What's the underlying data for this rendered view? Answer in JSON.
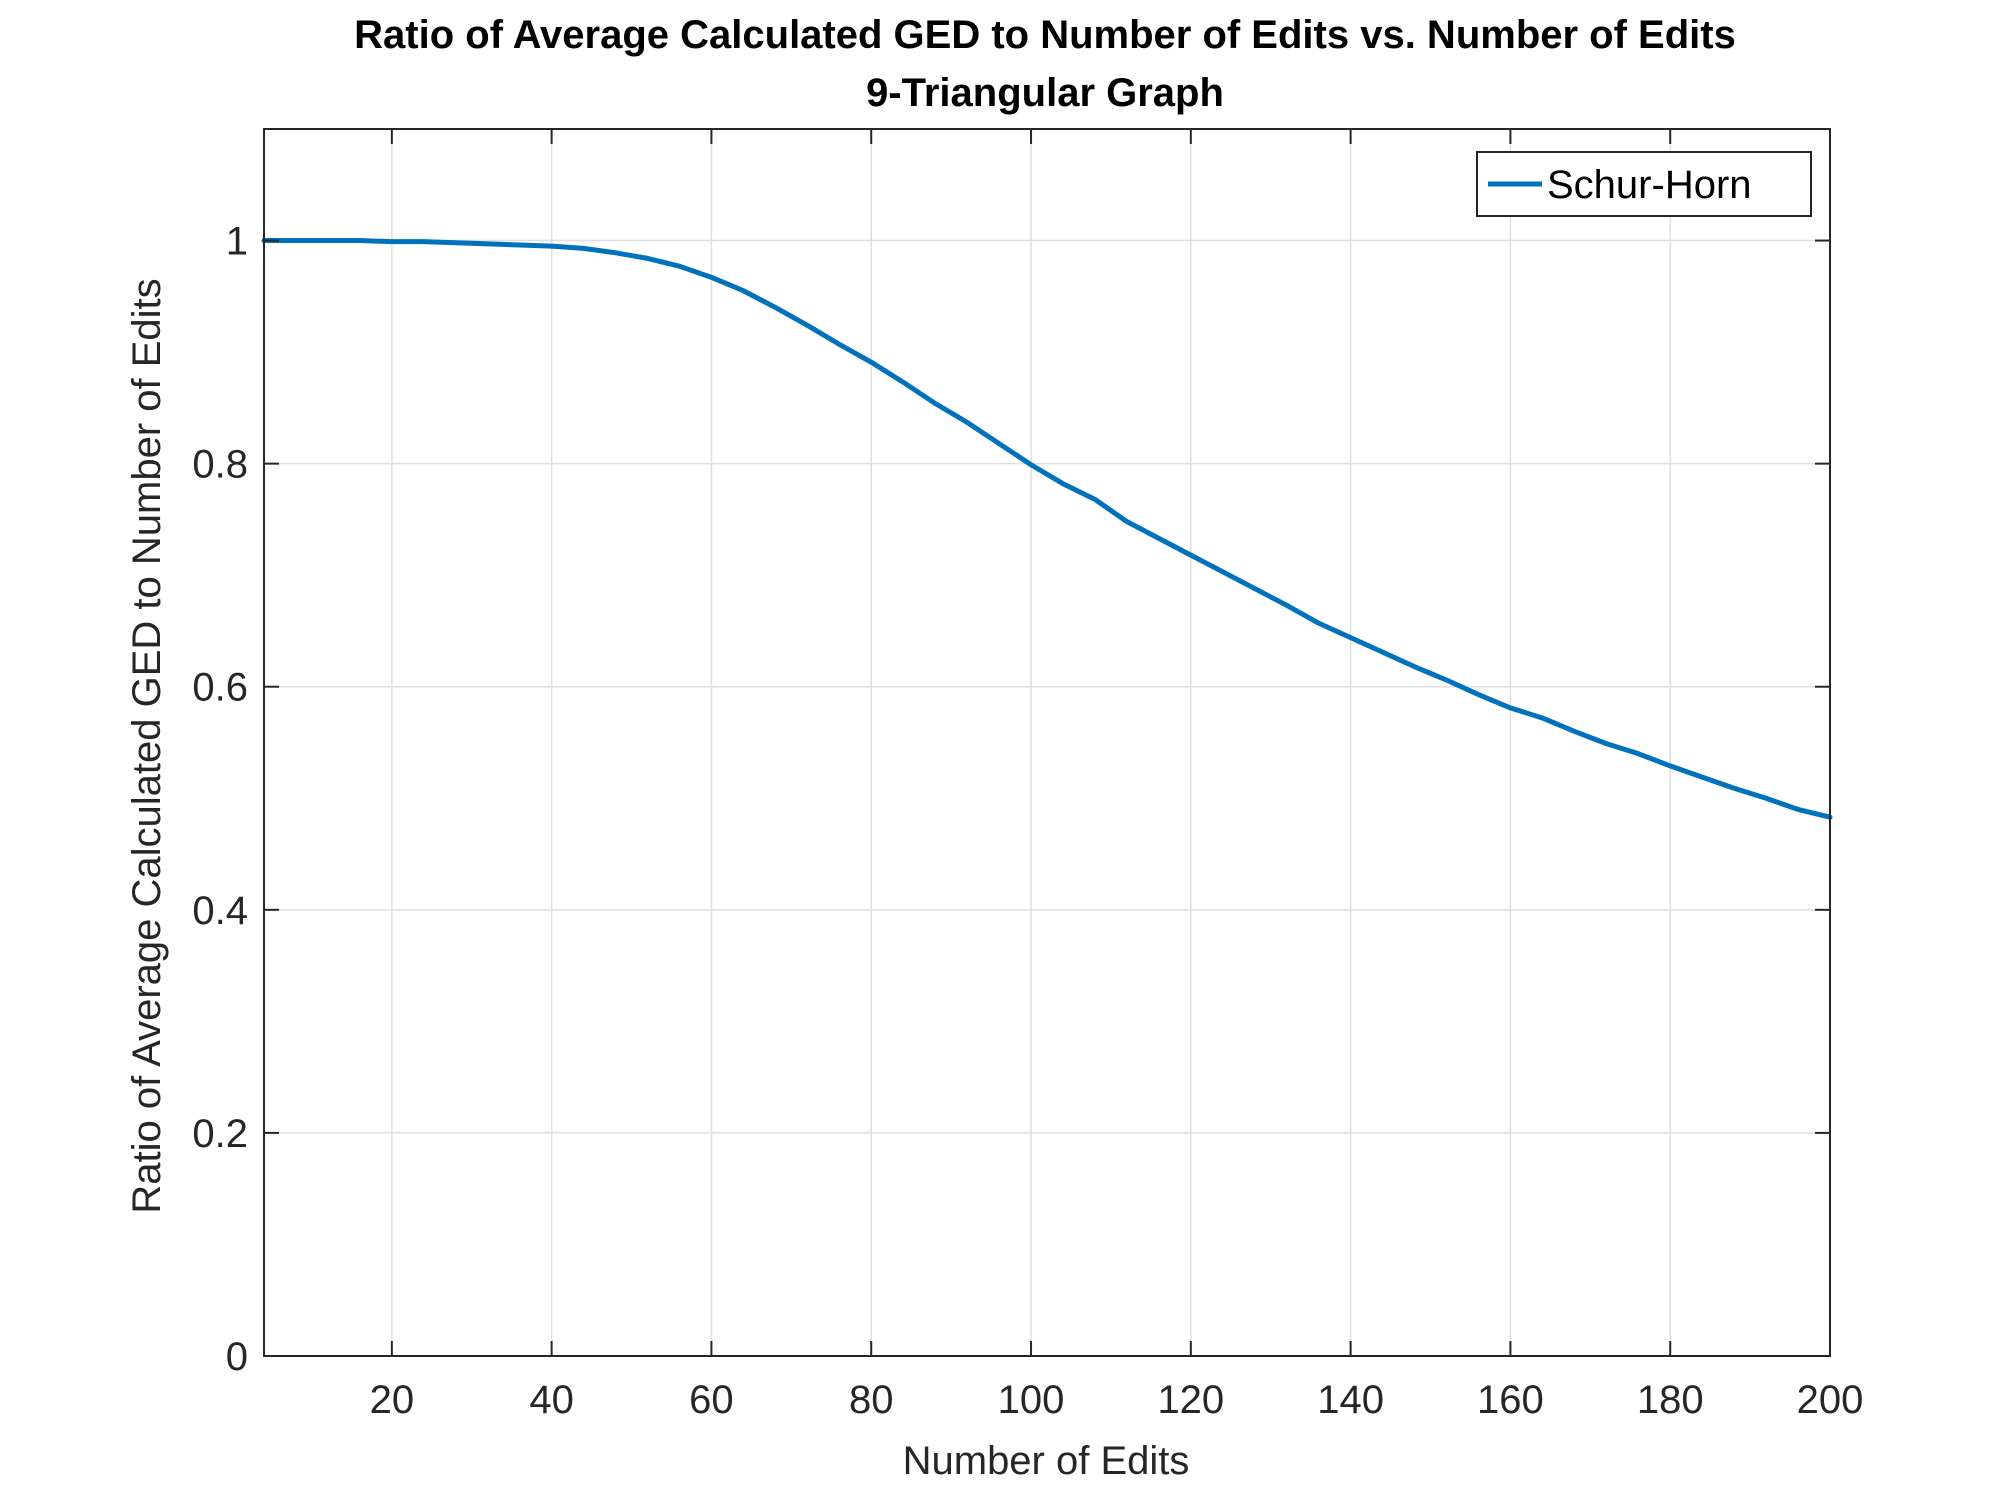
{
  "chart_data": {
    "type": "line",
    "title": "Ratio of Average Calculated GED to Number of Edits vs. Number of Edits",
    "subtitle": "9-Triangular Graph",
    "xlabel": "Number of Edits",
    "ylabel": "Ratio of Average Calculated GED to Number of Edits",
    "xlim": [
      4,
      200
    ],
    "ylim": [
      0,
      1.1
    ],
    "xticks": [
      20,
      40,
      60,
      80,
      100,
      120,
      140,
      160,
      180,
      200
    ],
    "yticks": [
      0,
      0.2,
      0.4,
      0.6,
      0.8,
      1
    ],
    "xtick_labels": [
      "20",
      "40",
      "60",
      "80",
      "100",
      "120",
      "140",
      "160",
      "180",
      "200"
    ],
    "ytick_labels": [
      "0",
      "0.2",
      "0.4",
      "0.6",
      "0.8",
      "1"
    ],
    "grid": true,
    "legend_position": "top-right",
    "series": [
      {
        "name": "Schur-Horn",
        "color": "#0072BD",
        "x": [
          4,
          8,
          12,
          16,
          20,
          24,
          28,
          32,
          36,
          40,
          44,
          48,
          52,
          56,
          60,
          64,
          68,
          72,
          76,
          80,
          84,
          88,
          92,
          96,
          100,
          104,
          108,
          112,
          116,
          120,
          124,
          128,
          132,
          136,
          140,
          144,
          148,
          152,
          156,
          160,
          164,
          168,
          172,
          176,
          180,
          184,
          188,
          192,
          196,
          200
        ],
        "values": [
          1.0,
          1.0,
          1.0,
          1.0,
          0.999,
          0.999,
          0.998,
          0.997,
          0.996,
          0.995,
          0.993,
          0.989,
          0.984,
          0.977,
          0.967,
          0.955,
          0.94,
          0.924,
          0.907,
          0.891,
          0.873,
          0.854,
          0.837,
          0.818,
          0.799,
          0.782,
          0.768,
          0.748,
          0.733,
          0.718,
          0.703,
          0.688,
          0.673,
          0.657,
          0.644,
          0.631,
          0.618,
          0.606,
          0.593,
          0.581,
          0.572,
          0.56,
          0.549,
          0.54,
          0.529,
          0.519,
          0.509,
          0.5,
          0.49,
          0.483
        ]
      }
    ]
  }
}
